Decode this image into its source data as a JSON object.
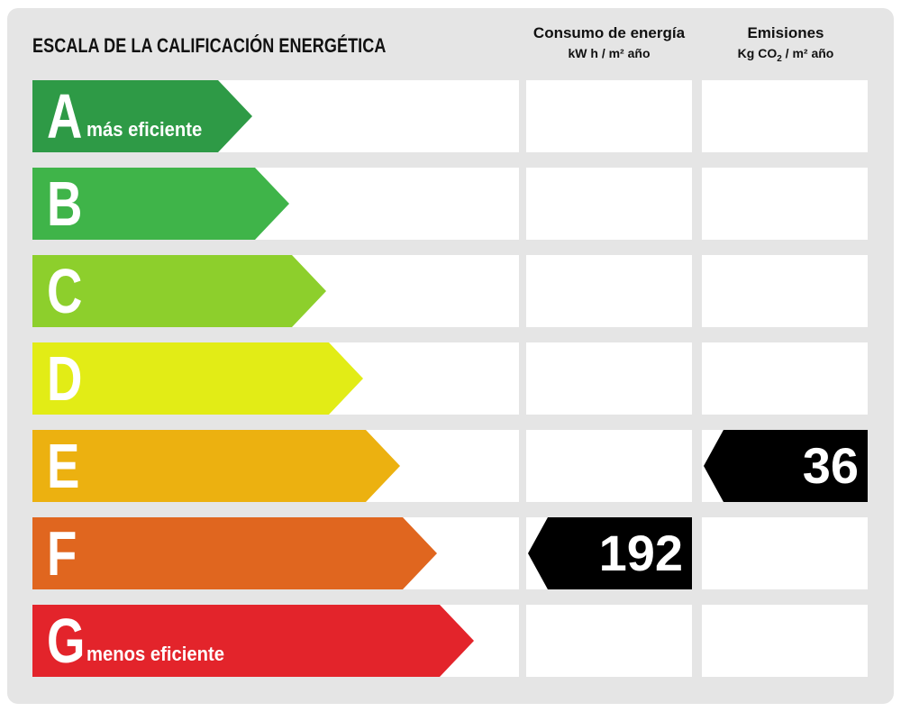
{
  "title": "ESCALA DE LA CALIFICACIÓN ENERGÉTICA",
  "columns": {
    "consumo": {
      "label": "Consumo de energía",
      "unit": "kW h / m² año"
    },
    "emisiones": {
      "label": "Emisiones",
      "unit_prefix": "Kg CO",
      "unit_sub": "2",
      "unit_suffix": " / m² año"
    }
  },
  "chart_data": {
    "type": "table",
    "title": "ESCALA DE LA CALIFICACIÓN ENERGÉTICA",
    "bands": [
      {
        "letter": "A",
        "note": "más eficiente",
        "color": "#2e9a46"
      },
      {
        "letter": "B",
        "note": "",
        "color": "#3fb449"
      },
      {
        "letter": "C",
        "note": "",
        "color": "#8dcf2c"
      },
      {
        "letter": "D",
        "note": "",
        "color": "#e2ec16"
      },
      {
        "letter": "E",
        "note": "",
        "color": "#ecb110"
      },
      {
        "letter": "F",
        "note": "",
        "color": "#e0661f"
      },
      {
        "letter": "G",
        "note": "menos eficiente",
        "color": "#e3242b"
      }
    ],
    "ratings": {
      "consumo": {
        "band": "F",
        "value": "192"
      },
      "emisiones": {
        "band": "E",
        "value": "36"
      }
    }
  },
  "colors": {
    "background": "#e5e5e5",
    "cell": "#ffffff",
    "marker": "#000000"
  }
}
